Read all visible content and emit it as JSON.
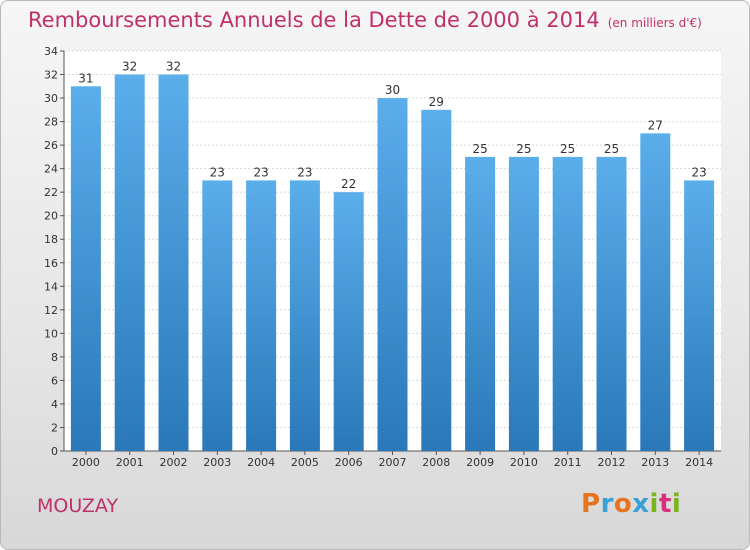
{
  "title": "Remboursements Annuels de la Dette de 2000 à 2014",
  "unit": "(en milliers d'€)",
  "commune": "MOUZAY",
  "logo": {
    "text": "Proxiti",
    "colors": [
      "#e8731f",
      "#3aa0d8",
      "#e8731f",
      "#3aa0d8",
      "#7ab51d",
      "#d8307a",
      "#7ab51d"
    ]
  },
  "colors": {
    "bar_top": "#5aaeea",
    "bar_bottom": "#2a78b8",
    "title": "#c0306a"
  },
  "chart_data": {
    "type": "bar",
    "categories": [
      "2000",
      "2001",
      "2002",
      "2003",
      "2004",
      "2005",
      "2006",
      "2007",
      "2008",
      "2009",
      "2010",
      "2011",
      "2012",
      "2013",
      "2014"
    ],
    "values": [
      31,
      32,
      32,
      23,
      23,
      23,
      22,
      30,
      29,
      25,
      25,
      25,
      25,
      27,
      23
    ],
    "ylim": [
      0,
      34
    ],
    "yticks": [
      0,
      2,
      4,
      6,
      8,
      10,
      12,
      14,
      16,
      18,
      20,
      22,
      24,
      26,
      28,
      30,
      32,
      34
    ],
    "grid": true
  }
}
